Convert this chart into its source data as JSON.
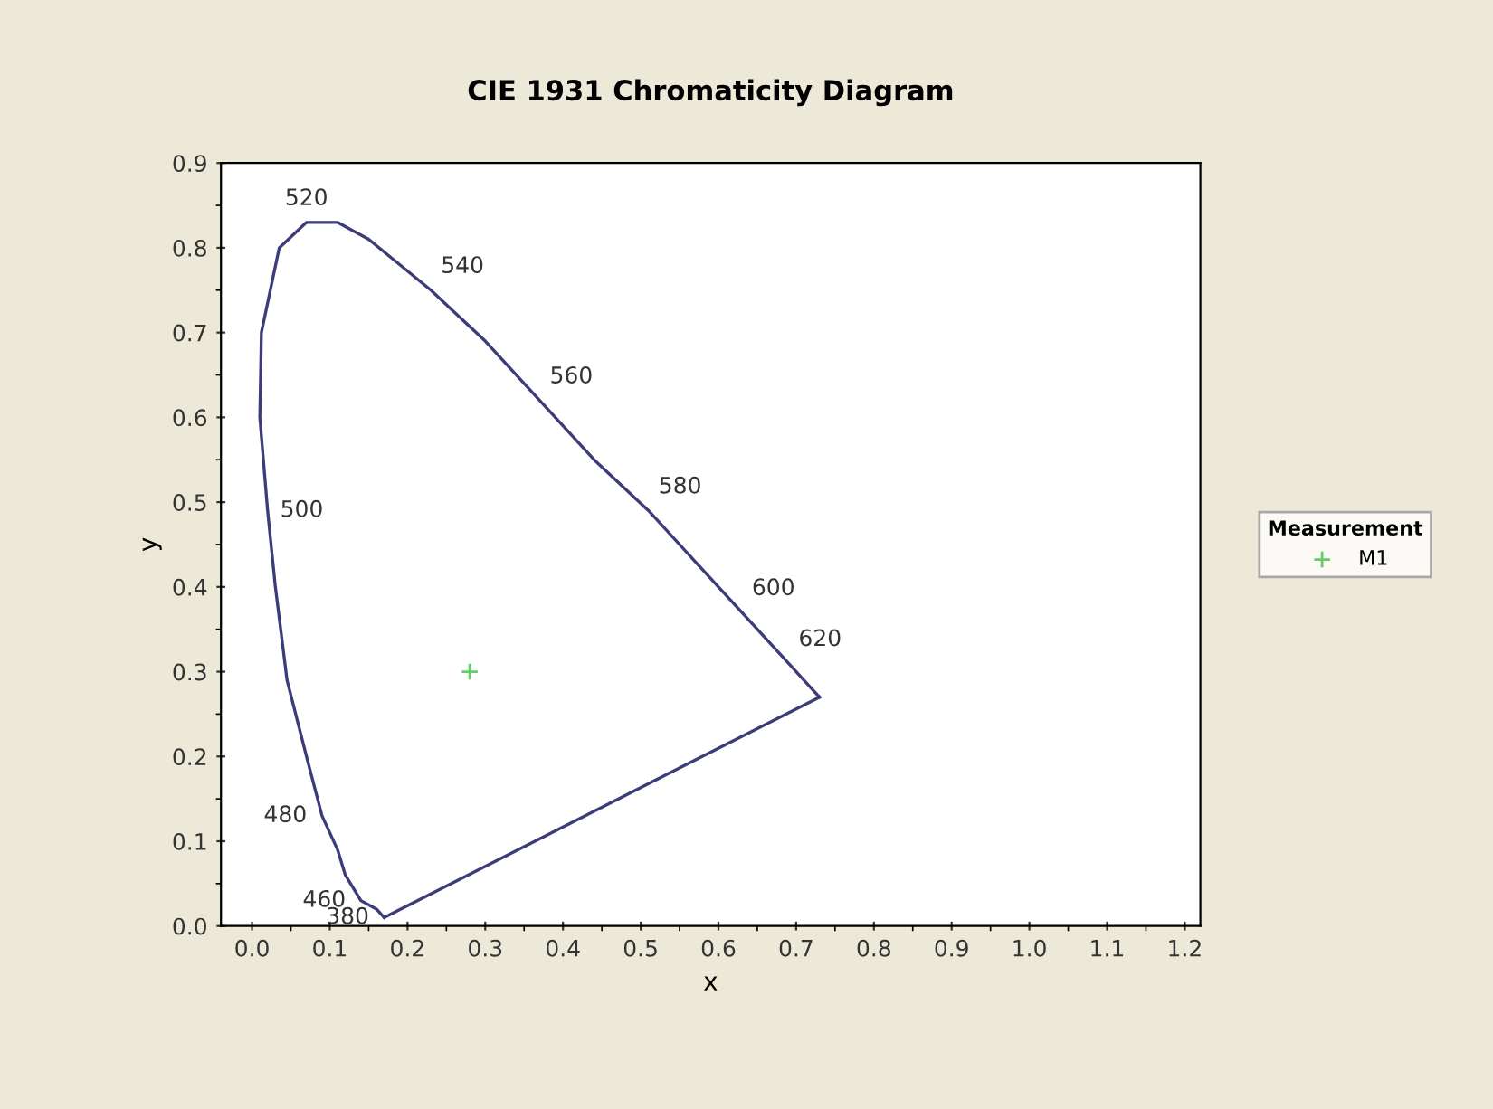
{
  "chart_data": {
    "type": "line",
    "title": "CIE 1931 Chromaticity Diagram",
    "xlabel": "x",
    "ylabel": "y",
    "xlim": [
      -0.04,
      1.22
    ],
    "ylim": [
      0.0,
      0.9
    ],
    "xticks": [
      {
        "value": 0.0,
        "label": "0.0"
      },
      0.1,
      0.2,
      0.3,
      0.4,
      0.5,
      0.6,
      0.7,
      0.8,
      0.9,
      {
        "value": 1.0,
        "label": "1.0"
      },
      1.1,
      1.2
    ],
    "yticks": [
      {
        "value": 0.0,
        "label": "0.0"
      },
      0.1,
      0.2,
      0.3,
      0.4,
      0.5,
      0.6,
      0.7,
      0.8,
      0.9
    ],
    "grid": false,
    "legend": "right",
    "legend_title": "Measurement",
    "series": [
      {
        "color": "#3c3c78",
        "marker": "none",
        "line_style": "solid",
        "x": [
          0.17,
          0.16,
          0.14,
          0.12,
          0.11,
          0.09,
          0.07,
          0.045,
          0.03,
          0.02,
          0.01,
          0.012,
          0.035,
          0.07,
          0.11,
          0.15,
          0.23,
          0.3,
          0.37,
          0.44,
          0.51,
          0.58,
          0.63,
          0.67,
          0.69,
          0.72,
          0.73
        ],
        "values": [
          0.01,
          0.02,
          0.03,
          0.06,
          0.09,
          0.13,
          0.2,
          0.29,
          0.4,
          0.49,
          0.6,
          0.7,
          0.8,
          0.83,
          0.83,
          0.81,
          0.75,
          0.69,
          0.62,
          0.55,
          0.49,
          0.42,
          0.37,
          0.33,
          0.31,
          0.28,
          0.27
        ]
      },
      {
        "color": "#3c3c78",
        "marker": "none",
        "line_style": "solid",
        "x": [
          0.73,
          0.17
        ],
        "values": [
          0.27,
          0.01
        ]
      },
      {
        "type": "scatter",
        "name": "M1",
        "color": "#66cc66",
        "marker": "cross",
        "x": [
          0.28
        ],
        "values": [
          0.3
        ]
      }
    ],
    "annotations": [
      {
        "text": "380",
        "x": 0.17,
        "y": 0.01
      },
      {
        "text": "460",
        "x": 0.14,
        "y": 0.03
      },
      {
        "text": "480",
        "x": 0.09,
        "y": 0.13
      },
      {
        "text": "500",
        "x": 0.02,
        "y": 0.49
      },
      {
        "text": "520",
        "x": 0.07,
        "y": 0.83
      },
      {
        "text": "540",
        "x": 0.23,
        "y": 0.75
      },
      {
        "text": "560",
        "x": 0.37,
        "y": 0.62
      },
      {
        "text": "580",
        "x": 0.51,
        "y": 0.49
      },
      {
        "text": "600",
        "x": 0.63,
        "y": 0.37
      },
      {
        "text": "620",
        "x": 0.69,
        "y": 0.31
      }
    ]
  }
}
